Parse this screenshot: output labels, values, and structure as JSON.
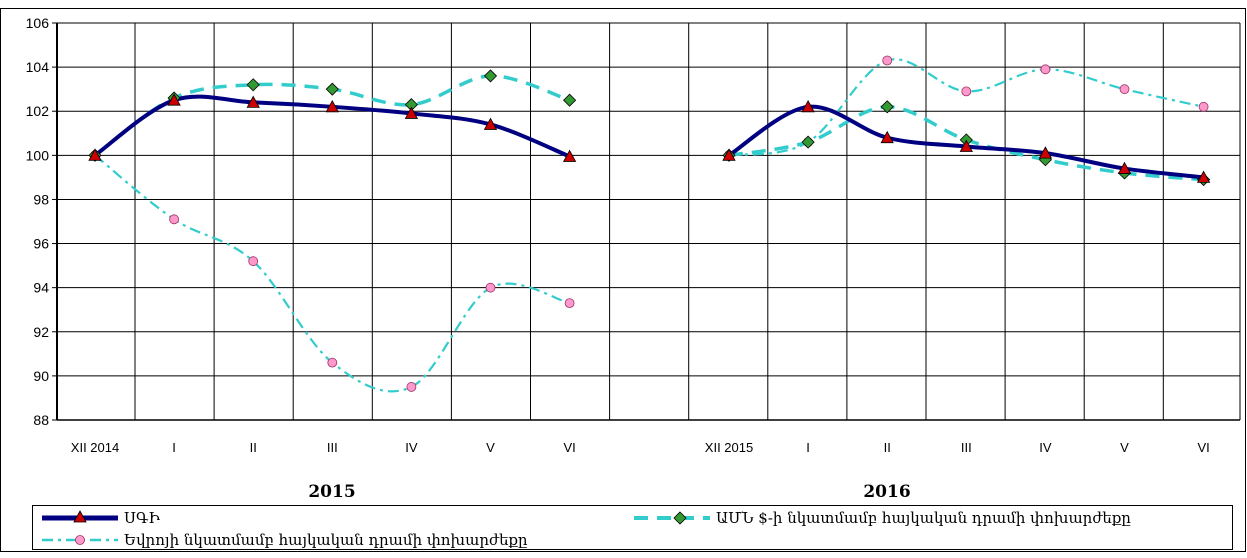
{
  "chart_data": {
    "type": "line",
    "ylim": [
      88,
      106
    ],
    "yticks": [
      "88",
      "90",
      "92",
      "94",
      "96",
      "98",
      "100",
      "102",
      "104",
      "106"
    ],
    "grid": true,
    "legend_position": "bottom",
    "groups": [
      {
        "label": "2015",
        "categories": [
          "XII 2014",
          "I",
          "II",
          "III",
          "IV",
          "V",
          "VI"
        ],
        "series": [
          {
            "name": "ՍԳԻ",
            "color": "#000080",
            "values": [
              100.0,
              102.5,
              102.4,
              102.2,
              101.9,
              101.4,
              99.95
            ]
          },
          {
            "name": "ԱՄՆ $-ի նկատմամբ հայկական դրամի փոխարժեքը",
            "color": "#33cccc",
            "values": [
              100.0,
              102.6,
              103.2,
              103.0,
              102.3,
              103.6,
              102.5
            ]
          },
          {
            "name": "Եվրոյի նկատմամբ հայկական դրամի փոխարժեքը",
            "color": "#33cccc",
            "values": [
              100.0,
              97.1,
              95.2,
              90.6,
              89.5,
              94.0,
              93.3
            ]
          }
        ]
      },
      {
        "label": "2016",
        "categories": [
          "XII 2015",
          "I",
          "II",
          "III",
          "IV",
          "V",
          "VI"
        ],
        "series": [
          {
            "name": "ՍԳԻ",
            "color": "#000080",
            "values": [
              100.0,
              102.2,
              100.8,
              100.4,
              100.1,
              99.4,
              99.0
            ]
          },
          {
            "name": "ԱՄՆ $-ի նկատմամբ հայկական դրամի փոխարժեքը",
            "color": "#33cccc",
            "values": [
              100.0,
              100.6,
              102.2,
              100.7,
              99.8,
              99.2,
              98.9
            ]
          },
          {
            "name": "Եվրոյի նկատմամբ հայկական դրամի փոխարժեքը",
            "color": "#33cccc",
            "values": [
              100.0,
              100.6,
              104.3,
              102.9,
              103.9,
              103.0,
              102.2
            ]
          }
        ]
      }
    ]
  },
  "legend": {
    "cpi": "ՍԳԻ",
    "usd": "ԱՄՆ $-ի նկատմամբ հայկական դրամի փոխարժեքը",
    "eur": "Եվրոյի նկատմամբ հայկական դրամի փոխարժեքը"
  },
  "colors": {
    "cpi_line": "#000080",
    "fx_line": "#33cccc",
    "triangle_marker": "#cc0000",
    "diamond_marker": "#339933",
    "circle_marker": "#ff99cc",
    "grid": "#000000"
  }
}
